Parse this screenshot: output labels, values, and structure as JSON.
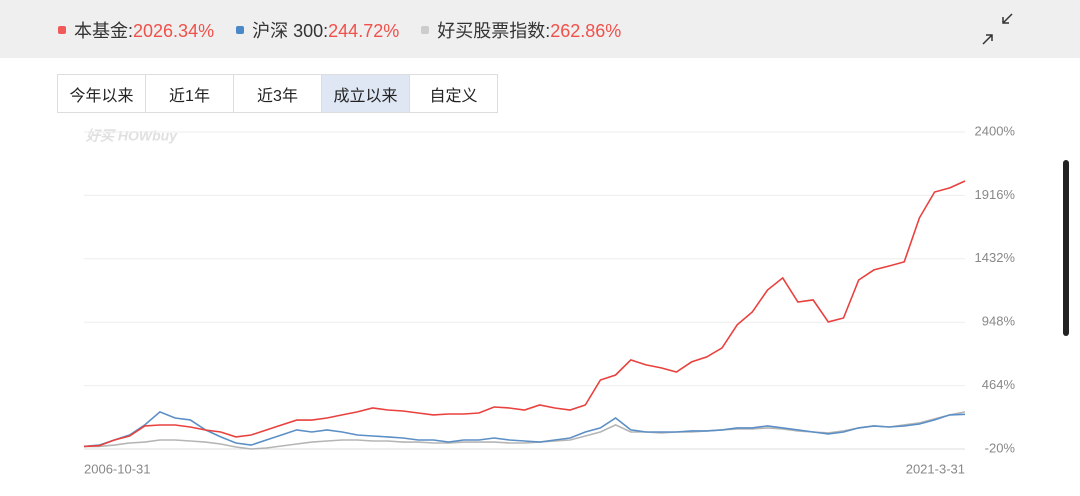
{
  "chart_data": {
    "type": "line",
    "legend_separator": ":",
    "tabs": [
      "今年以来",
      "近1年",
      "近3年",
      "成立以来",
      "自定义"
    ],
    "selected_tab": 3,
    "watermark": "好买 HOWbuy",
    "categories": [
      "2006-10-31",
      null,
      null,
      null,
      null,
      null,
      null,
      null,
      null,
      null,
      null,
      null,
      null,
      null,
      null,
      null,
      null,
      null,
      null,
      null,
      null,
      null,
      null,
      null,
      null,
      null,
      null,
      null,
      null,
      null,
      null,
      null,
      null,
      null,
      null,
      null,
      null,
      null,
      null,
      null,
      null,
      null,
      null,
      null,
      null,
      null,
      null,
      null,
      null,
      null,
      null,
      null,
      null,
      null,
      null,
      null,
      null,
      null,
      "2021-3-31"
    ],
    "series": [
      {
        "name": "本基金",
        "color": "#e8413e",
        "legend_color": "#f05a5a",
        "return_label": "2026.34%",
        "values": [
          0,
          5,
          49,
          79,
          156,
          163,
          163,
          148,
          125,
          110,
          72,
          87,
          125,
          163,
          201,
          201,
          217,
          240,
          263,
          293,
          278,
          270,
          255,
          240,
          247,
          247,
          255,
          301,
          293,
          278,
          316,
          293,
          278,
          316,
          507,
          545,
          660,
          622,
          599,
          568,
          645,
          683,
          752,
          928,
          1026,
          1194,
          1286,
          1102,
          1118,
          950,
          980,
          1270,
          1347,
          1377,
          1408,
          1744,
          1942,
          1973,
          2026
        ]
      },
      {
        "name": "沪深 300",
        "color": "#5b8fc5",
        "legend_color": "#4a88c7",
        "return_label": "244.72%",
        "values": [
          0,
          10,
          49,
          87,
          164,
          263,
          217,
          202,
          126,
          72,
          26,
          10,
          49,
          87,
          126,
          110,
          126,
          110,
          87,
          79,
          72,
          64,
          49,
          49,
          33,
          49,
          49,
          64,
          49,
          41,
          33,
          49,
          64,
          110,
          141,
          217,
          126,
          110,
          110,
          110,
          118,
          118,
          126,
          141,
          141,
          156,
          141,
          126,
          110,
          95,
          110,
          141,
          156,
          148,
          156,
          171,
          202,
          240,
          245
        ]
      },
      {
        "name": "好买股票指数",
        "color": "#b5b5b5",
        "legend_color": "#cccccc",
        "return_label": "262.86%",
        "values": [
          0,
          0,
          10,
          26,
          33,
          49,
          49,
          41,
          33,
          18,
          -5,
          -20,
          -12,
          3,
          18,
          33,
          41,
          49,
          49,
          41,
          41,
          33,
          33,
          26,
          26,
          33,
          33,
          33,
          26,
          26,
          33,
          41,
          49,
          79,
          110,
          164,
          110,
          110,
          103,
          110,
          110,
          118,
          126,
          133,
          133,
          141,
          133,
          118,
          110,
          103,
          118,
          141,
          156,
          148,
          164,
          179,
          210,
          240,
          263
        ]
      }
    ],
    "ylim": [
      -20,
      2400
    ],
    "yticks": [
      {
        "value": -20,
        "label": "-20%"
      },
      {
        "value": 464,
        "label": "464%"
      },
      {
        "value": 948,
        "label": "948%"
      },
      {
        "value": 1432,
        "label": "1432%"
      },
      {
        "value": 1916,
        "label": "1916%"
      },
      {
        "value": 2400,
        "label": "2400%"
      }
    ],
    "grid": true
  }
}
